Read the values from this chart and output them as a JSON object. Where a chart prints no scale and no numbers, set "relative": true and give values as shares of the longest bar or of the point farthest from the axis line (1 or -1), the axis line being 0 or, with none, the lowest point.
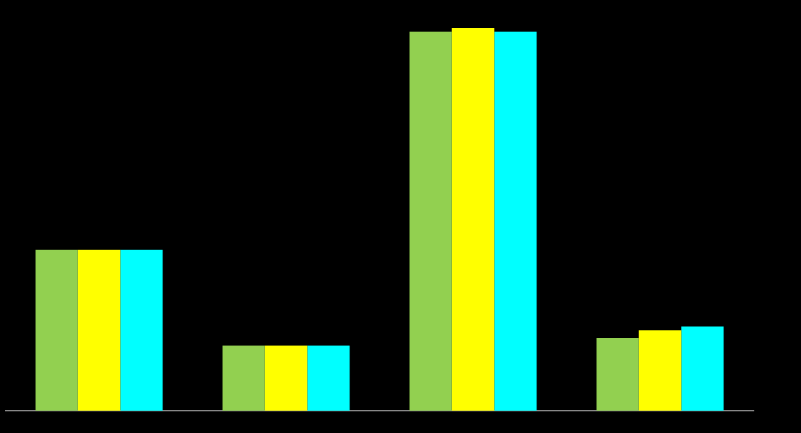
{
  "chart_data": {
    "type": "bar",
    "relative": true,
    "categories": [
      null,
      null,
      null,
      null
    ],
    "series": [
      {
        "color": "#92d050",
        "values": [
          0.42,
          0.17,
          0.99,
          0.19
        ]
      },
      {
        "color": "#ffff00",
        "values": [
          0.42,
          0.17,
          1,
          0.21
        ]
      },
      {
        "color": "#00ffff",
        "values": [
          0.42,
          0.17,
          0.99,
          0.22
        ]
      }
    ]
  }
}
